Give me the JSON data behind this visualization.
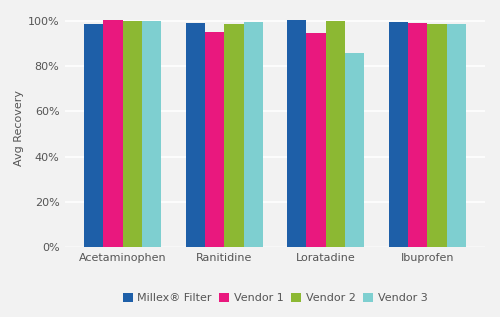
{
  "categories": [
    "Acetaminophen",
    "Ranitidine",
    "Loratadine",
    "Ibuprofen"
  ],
  "series": {
    "Millex® Filter": [
      98.5,
      99.0,
      100.5,
      99.5
    ],
    "Vendor 1": [
      100.5,
      95.0,
      94.5,
      99.0
    ],
    "Vendor 2": [
      100.0,
      98.5,
      100.0,
      98.5
    ],
    "Vendor 3": [
      100.0,
      99.5,
      86.0,
      98.5
    ]
  },
  "colors": {
    "Millex® Filter": "#1e5fa8",
    "Vendor 1": "#e9187e",
    "Vendor 2": "#8cb833",
    "Vendor 3": "#7ecfd0"
  },
  "ylabel": "Avg Recovery",
  "ylim": [
    0,
    105
  ],
  "yticks": [
    0,
    20,
    40,
    60,
    80,
    100
  ],
  "ytick_labels": [
    "0%",
    "20%",
    "40%",
    "60%",
    "80%",
    "100%"
  ],
  "background_color": "#f2f2f2",
  "plot_bg_color": "#f2f2f2",
  "grid_color": "#ffffff",
  "bar_width": 0.19,
  "legend_ncol": 4,
  "title_fontsize": 9,
  "label_fontsize": 8,
  "tick_fontsize": 8
}
